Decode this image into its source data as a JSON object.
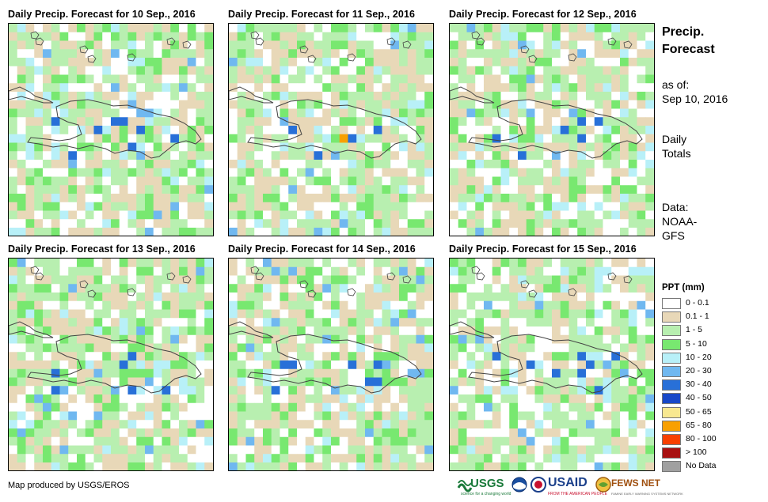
{
  "panels": [
    {
      "title": "Daily Precip. Forecast for 10 Sep., 2016"
    },
    {
      "title": "Daily Precip. Forecast for 11 Sep., 2016"
    },
    {
      "title": "Daily Precip. Forecast for 12 Sep., 2016"
    },
    {
      "title": "Daily Precip. Forecast for 13 Sep., 2016"
    },
    {
      "title": "Daily Precip. Forecast for 14 Sep., 2016"
    },
    {
      "title": "Daily Precip. Forecast for 15 Sep., 2016"
    }
  ],
  "side": {
    "title_line1": "Precip.",
    "title_line2": "Forecast",
    "as_of_label": "as of:",
    "as_of_date": "Sep 10, 2016",
    "totals_line1": "Daily",
    "totals_line2": "Totals",
    "data_line1": "Data:",
    "data_line2": "NOAA-",
    "data_line3": "GFS"
  },
  "legend": {
    "title": "PPT (mm)",
    "items": [
      {
        "label": "0 - 0.1",
        "color": "#ffffff"
      },
      {
        "label": "0.1 - 1",
        "color": "#e8d8b8"
      },
      {
        "label": "1 - 5",
        "color": "#b8efb0"
      },
      {
        "label": "5 - 10",
        "color": "#78e870"
      },
      {
        "label": "10 - 20",
        "color": "#b8f0f8"
      },
      {
        "label": "20 - 30",
        "color": "#70b8f0"
      },
      {
        "label": "30 - 40",
        "color": "#2870d8"
      },
      {
        "label": "40 - 50",
        "color": "#1848c8"
      },
      {
        "label": "50 - 65",
        "color": "#f8e890"
      },
      {
        "label": "65 - 80",
        "color": "#f8a000"
      },
      {
        "label": "80 - 100",
        "color": "#f84000"
      },
      {
        "label": "> 100",
        "color": "#a81010"
      },
      {
        "label": "No Data",
        "color": "#a0a0a0"
      }
    ]
  },
  "credit": "Map produced by USGS/EROS",
  "logos": {
    "usgs": "USGS",
    "usgs_tagline": "science for a changing world",
    "noaa_icon": "noaa-logo-icon",
    "usaid_seal_icon": "usaid-seal-icon",
    "usaid": "USAID",
    "usaid_tagline": "FROM THE AMERICAN PEOPLE",
    "fewsnet": "FEWS NET",
    "fewsnet_tagline": "FAMINE EARLY WARNING SYSTEMS NETWORK"
  }
}
